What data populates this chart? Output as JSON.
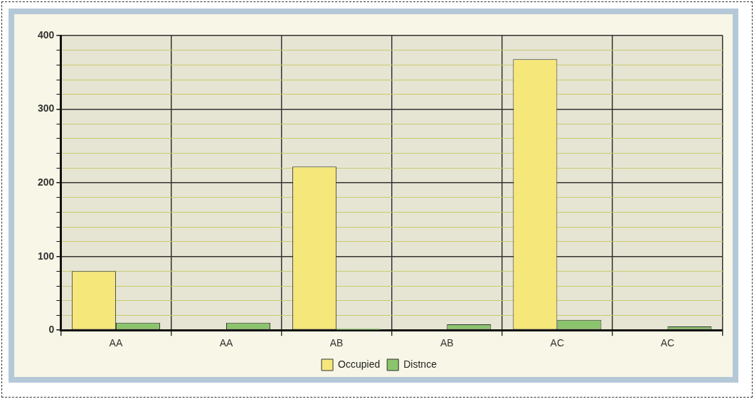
{
  "chart_data": {
    "type": "bar",
    "categories": [
      "AA",
      "AA",
      "AB",
      "AB",
      "AC",
      "AC"
    ],
    "series": [
      {
        "name": "Occupied",
        "color": "#f5e77a",
        "values": [
          80,
          0,
          222,
          0,
          368,
          0
        ]
      },
      {
        "name": "Distnce",
        "color": "#8cc46e",
        "values": [
          10,
          10,
          2,
          8,
          14,
          5
        ]
      }
    ],
    "ylim": [
      0,
      400
    ],
    "yticks": [
      0,
      {
        "value": 20,
        "label": null
      },
      {
        "value": 40,
        "label": null
      },
      {
        "value": 60,
        "label": null
      },
      {
        "value": 80,
        "label": null
      },
      100,
      {
        "value": 120,
        "label": null
      },
      {
        "value": 140,
        "label": null
      },
      {
        "value": 160,
        "label": null
      },
      {
        "value": 180,
        "label": null
      },
      200,
      {
        "value": 220,
        "label": null
      },
      {
        "value": 240,
        "label": null
      },
      {
        "value": 260,
        "label": null
      },
      {
        "value": 280,
        "label": null
      },
      300,
      {
        "value": 320,
        "label": null
      },
      {
        "value": 340,
        "label": null
      },
      {
        "value": 360,
        "label": null
      },
      {
        "value": 380,
        "label": null
      },
      400
    ],
    "grid": true,
    "legend": "bottom"
  }
}
